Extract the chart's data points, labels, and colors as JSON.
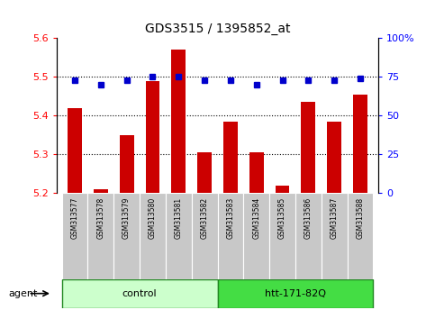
{
  "title": "GDS3515 / 1395852_at",
  "samples": [
    "GSM313577",
    "GSM313578",
    "GSM313579",
    "GSM313580",
    "GSM313581",
    "GSM313582",
    "GSM313583",
    "GSM313584",
    "GSM313585",
    "GSM313586",
    "GSM313587",
    "GSM313588"
  ],
  "red_values": [
    5.42,
    5.21,
    5.35,
    5.49,
    5.57,
    5.305,
    5.385,
    5.305,
    5.22,
    5.435,
    5.385,
    5.455
  ],
  "blue_values": [
    73,
    70,
    73,
    75,
    75,
    73,
    73,
    70,
    73,
    73,
    73,
    74
  ],
  "ylim_left": [
    5.2,
    5.6
  ],
  "ylim_right": [
    0,
    100
  ],
  "yticks_left": [
    5.2,
    5.3,
    5.4,
    5.5,
    5.6
  ],
  "yticks_right": [
    0,
    25,
    50,
    75,
    100
  ],
  "hlines": [
    5.3,
    5.4,
    5.5
  ],
  "control_samples": 6,
  "htt_samples": 6,
  "groups": [
    "control",
    "htt-171-82Q"
  ],
  "agent_label": "agent",
  "bar_color": "#cc0000",
  "dot_color": "#0000cc",
  "base": 5.2,
  "tick_bg_color": "#c8c8c8",
  "control_color": "#ccffcc",
  "htt_color": "#44dd44",
  "group_border_color": "#228822"
}
